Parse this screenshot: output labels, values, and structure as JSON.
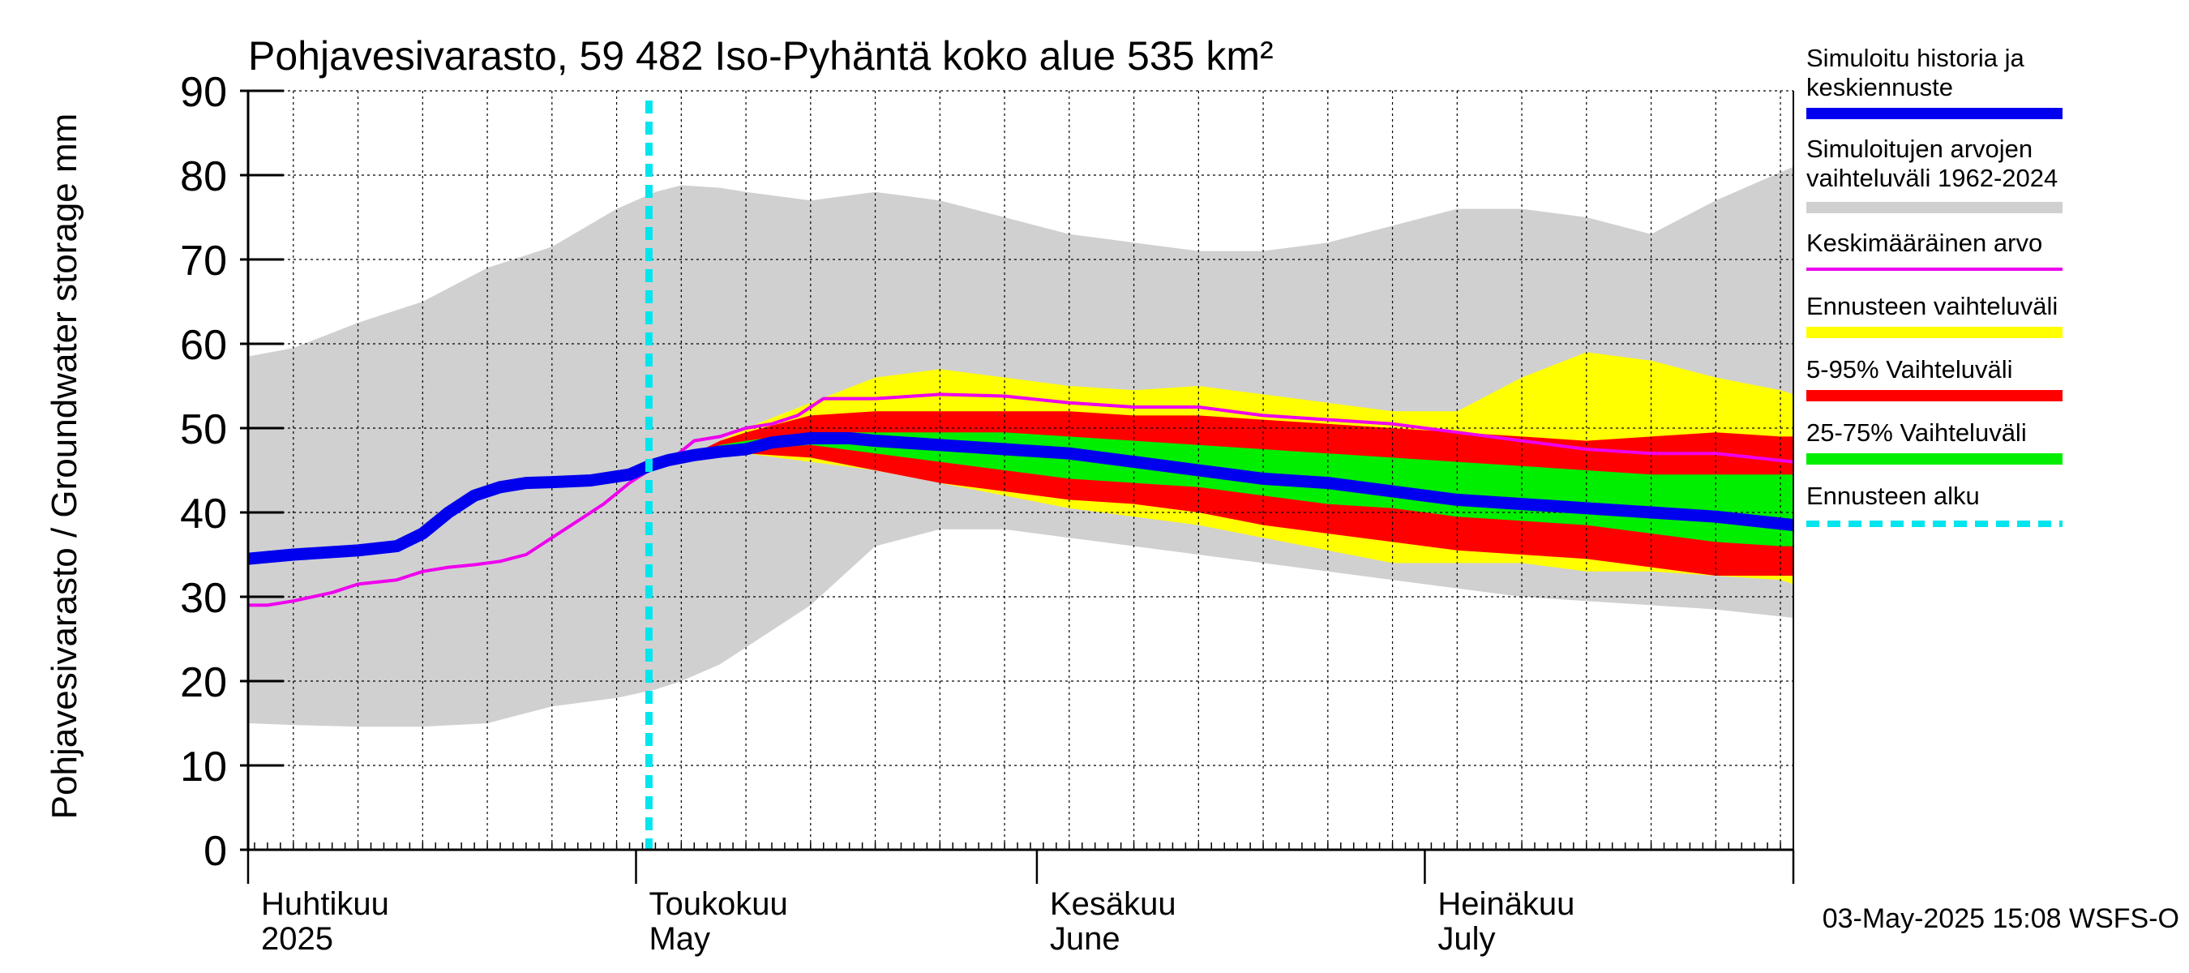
{
  "chart_data": {
    "type": "area",
    "title": "Pohjavesivarasto, 59 482 Iso-Pyhäntä koko alue 535 km²",
    "ylabel": "Pohjavesivarasto / Groundwater storage   mm",
    "ylim": [
      0,
      90
    ],
    "y_ticks": [
      0,
      10,
      20,
      30,
      40,
      50,
      60,
      70,
      80,
      90
    ],
    "grid": true,
    "x_unit": "day of year 2025",
    "xlim": [
      91.5,
      211
    ],
    "forecast_start_day": 122.5,
    "month_labels": [
      {
        "day": 92,
        "fi": "Huhtikuu",
        "en": "2025"
      },
      {
        "day": 122,
        "fi": "Toukokuu",
        "en": "May"
      },
      {
        "day": 153,
        "fi": "Kesäkuu",
        "en": "June"
      },
      {
        "day": 183,
        "fi": "Heinäkuu",
        "en": "July"
      }
    ],
    "legend_position": "right",
    "legend": [
      {
        "label": "Simuloitu historia ja keskiennuste",
        "color": "#0000ee",
        "style": "thick"
      },
      {
        "label": "Simuloitujen arvojen vaihteluväli 1962-2024",
        "color": "#d0d0d0",
        "style": "thick"
      },
      {
        "label": "Keskimääräinen arvo",
        "color": "#ee00ee",
        "style": "thin"
      },
      {
        "label": "Ennusteen vaihteluväli",
        "color": "#ffff00",
        "style": "thick"
      },
      {
        "label": "5-95% Vaihteluväli",
        "color": "#ff0000",
        "style": "thick"
      },
      {
        "label": "25-75% Vaihteluväli",
        "color": "#00ee00",
        "style": "thick"
      },
      {
        "label": "Ennusteen alku",
        "color": "#00e5ee",
        "style": "dashed"
      }
    ],
    "series": [
      {
        "name": "Simuloitujen arvojen vaihteluväli 1962-2024",
        "type": "band",
        "color": "#d0d0d0",
        "x": [
          91.5,
          95,
          100,
          105,
          110,
          115,
          120,
          123,
          125,
          128,
          130,
          135,
          140,
          145,
          150,
          155,
          160,
          165,
          170,
          175,
          180,
          185,
          190,
          195,
          200,
          205,
          211
        ],
        "low": [
          15,
          14.8,
          14.6,
          14.6,
          15,
          17,
          18,
          19,
          20,
          22,
          24,
          29,
          36,
          38,
          38,
          37,
          36,
          35,
          34,
          33,
          32,
          31,
          30,
          29.5,
          29,
          28.5,
          27.5
        ],
        "high": [
          58.5,
          59.5,
          62.5,
          65,
          69,
          71.5,
          76,
          78,
          78.8,
          78.5,
          78,
          77,
          78,
          77,
          75,
          73,
          72,
          71,
          71,
          72,
          74,
          76,
          76,
          75,
          73,
          77,
          81
        ]
      },
      {
        "name": "Ennusteen vaihteluväli",
        "type": "band",
        "color": "#ffff00",
        "x": [
          123,
          126,
          128,
          130,
          135,
          140,
          145,
          150,
          155,
          160,
          165,
          170,
          175,
          180,
          185,
          190,
          195,
          200,
          205,
          210,
          211
        ],
        "low": [
          46,
          46.5,
          47,
          47,
          46,
          45,
          43.5,
          42,
          40.5,
          39.5,
          38.5,
          37,
          35.5,
          34,
          34,
          34,
          33,
          33,
          32.5,
          32,
          31.5
        ],
        "high": [
          46,
          47,
          48.5,
          50,
          53,
          56,
          57,
          56,
          55,
          54.5,
          55,
          54,
          53,
          52,
          52,
          56,
          59,
          58,
          56,
          54.5,
          54
        ]
      },
      {
        "name": "5-95% Vaihteluväli",
        "type": "band",
        "color": "#ff0000",
        "x": [
          123,
          126,
          128,
          130,
          135,
          140,
          145,
          150,
          155,
          160,
          165,
          170,
          175,
          180,
          185,
          190,
          195,
          200,
          205,
          210,
          211
        ],
        "low": [
          46,
          46.5,
          47,
          47,
          46.5,
          45,
          43.5,
          42.5,
          41.5,
          41,
          40,
          38.5,
          37.5,
          36.5,
          35.5,
          35,
          34.5,
          33.5,
          32.5,
          32.5,
          32.5
        ],
        "high": [
          46,
          47,
          48.5,
          49.5,
          51.5,
          52,
          52,
          52,
          52,
          51.5,
          51.5,
          51,
          50.5,
          50,
          49.5,
          49,
          48.5,
          49,
          49.5,
          49,
          49
        ]
      },
      {
        "name": "25-75% Vaihteluväli",
        "type": "band",
        "color": "#00ee00",
        "x": [
          123,
          126,
          128,
          130,
          135,
          140,
          145,
          150,
          155,
          160,
          165,
          170,
          175,
          180,
          185,
          190,
          195,
          200,
          205,
          210,
          211
        ],
        "low": [
          46,
          46.5,
          47,
          47.5,
          48,
          47,
          46,
          45,
          44,
          43.5,
          43,
          42,
          41,
          40.5,
          39.5,
          39,
          38.5,
          37.5,
          36.5,
          36,
          36
        ],
        "high": [
          46,
          47,
          48,
          48.5,
          49.5,
          49.5,
          49.5,
          49.5,
          49,
          48.5,
          48,
          47.5,
          47,
          46.5,
          46,
          45.5,
          45,
          44.5,
          44.5,
          44.5,
          44.5
        ]
      },
      {
        "name": "Keskimääräinen arvo",
        "type": "line",
        "color": "#ee00ee",
        "x": [
          91.5,
          93,
          95,
          98,
          100,
          103,
          105,
          107,
          109,
          111,
          113,
          115,
          117,
          119,
          121,
          122.5,
          124,
          126,
          128,
          130,
          132,
          134,
          136,
          138,
          140,
          145,
          150,
          155,
          160,
          165,
          170,
          175,
          180,
          185,
          190,
          195,
          200,
          205,
          211
        ],
        "y": [
          29,
          29,
          29.5,
          30.5,
          31.5,
          32,
          33,
          33.5,
          33.8,
          34.2,
          35,
          37,
          39,
          41,
          43.5,
          45,
          46,
          48.5,
          49,
          50,
          50.5,
          51.5,
          53.5,
          53.5,
          53.5,
          54,
          53.8,
          53,
          52.5,
          52.5,
          51.5,
          51,
          50.5,
          49.5,
          48.5,
          47.5,
          47,
          47,
          46
        ]
      },
      {
        "name": "Simuloitu historia ja keskiennuste",
        "type": "line",
        "color": "#0000ee",
        "x": [
          91.5,
          95,
          100,
          103,
          105,
          107,
          109,
          111,
          113,
          115,
          118,
          121,
          122.5,
          124,
          126,
          128,
          130,
          132,
          135,
          138,
          140,
          145,
          150,
          155,
          160,
          165,
          170,
          175,
          180,
          185,
          190,
          195,
          200,
          205,
          211
        ],
        "y": [
          34.5,
          35,
          35.5,
          36,
          37.5,
          40,
          42,
          43,
          43.5,
          43.6,
          43.8,
          44.5,
          45.5,
          46.2,
          46.8,
          47.2,
          47.5,
          48.3,
          48.8,
          48.8,
          48.5,
          48,
          47.5,
          47,
          46,
          45,
          44,
          43.5,
          42.5,
          41.5,
          41,
          40.5,
          40,
          39.5,
          38.5
        ]
      }
    ]
  },
  "footer": {
    "timestamp": "03-May-2025 15:08 WSFS-O"
  }
}
